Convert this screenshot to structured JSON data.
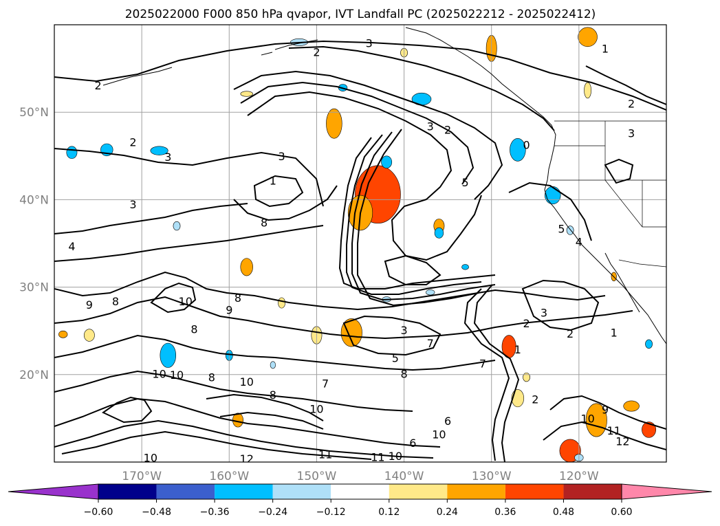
{
  "chart_data": {
    "type": "contour-map",
    "title": "2025022000 F000 850 hPa qvapor, IVT Landfall PC (2025022212 - 2025022412)",
    "lon_range": [
      -180,
      -110
    ],
    "lat_range": [
      10,
      60
    ],
    "lon_ticks": [
      -170,
      -160,
      -150,
      -140,
      -130,
      -120
    ],
    "lon_tick_labels": [
      "170°W",
      "160°W",
      "150°W",
      "140°W",
      "130°W",
      "120°W"
    ],
    "lat_ticks": [
      20,
      30,
      40,
      50
    ],
    "lat_tick_labels": [
      "20°N",
      "30°N",
      "40°N",
      "50°N"
    ],
    "grid": true,
    "contour_labels": [
      {
        "text": "3",
        "lon": -144,
        "lat": 57.9
      },
      {
        "text": "2",
        "lon": -150,
        "lat": 56.9
      },
      {
        "text": "1",
        "lon": -117,
        "lat": 57.3
      },
      {
        "text": "2",
        "lon": -175,
        "lat": 53.1
      },
      {
        "text": "2",
        "lon": -114,
        "lat": 51.0
      },
      {
        "text": "2",
        "lon": -171,
        "lat": 46.6
      },
      {
        "text": "3",
        "lon": -167,
        "lat": 44.9
      },
      {
        "text": "3",
        "lon": -154,
        "lat": 45.0
      },
      {
        "text": "3",
        "lon": -137,
        "lat": 48.4
      },
      {
        "text": "2",
        "lon": -135,
        "lat": 48.0
      },
      {
        "text": "0",
        "lon": -126,
        "lat": 46.3
      },
      {
        "text": "5",
        "lon": -133,
        "lat": 42.0
      },
      {
        "text": "3",
        "lon": -114,
        "lat": 47.6
      },
      {
        "text": "3",
        "lon": -171,
        "lat": 39.5
      },
      {
        "text": "1",
        "lon": -155,
        "lat": 42.2
      },
      {
        "text": "8",
        "lon": -156,
        "lat": 37.4
      },
      {
        "text": "4",
        "lon": -178,
        "lat": 34.7
      },
      {
        "text": "5",
        "lon": -122,
        "lat": 36.7
      },
      {
        "text": "4",
        "lon": -120,
        "lat": 35.2
      },
      {
        "text": "8",
        "lon": -159,
        "lat": 28.8
      },
      {
        "text": "9",
        "lon": -176,
        "lat": 28.0
      },
      {
        "text": "8",
        "lon": -173,
        "lat": 28.4
      },
      {
        "text": "10",
        "lon": -165,
        "lat": 28.4
      },
      {
        "text": "9",
        "lon": -160,
        "lat": 27.4
      },
      {
        "text": "8",
        "lon": -164,
        "lat": 25.2
      },
      {
        "text": "3",
        "lon": -140,
        "lat": 25.1
      },
      {
        "text": "2",
        "lon": -126,
        "lat": 25.9
      },
      {
        "text": "3",
        "lon": -124,
        "lat": 27.1
      },
      {
        "text": "2",
        "lon": -121,
        "lat": 24.7
      },
      {
        "text": "1",
        "lon": -116,
        "lat": 24.8
      },
      {
        "text": "7",
        "lon": -137,
        "lat": 23.6
      },
      {
        "text": "5",
        "lon": -141,
        "lat": 21.9
      },
      {
        "text": "1",
        "lon": -127,
        "lat": 22.9
      },
      {
        "text": "7",
        "lon": -131,
        "lat": 21.3
      },
      {
        "text": "8",
        "lon": -140,
        "lat": 20.1
      },
      {
        "text": "10",
        "lon": -168,
        "lat": 20.1
      },
      {
        "text": "10",
        "lon": -166,
        "lat": 20.0
      },
      {
        "text": "8",
        "lon": -162,
        "lat": 19.7
      },
      {
        "text": "10",
        "lon": -158,
        "lat": 19.2
      },
      {
        "text": "7",
        "lon": -149,
        "lat": 19.0
      },
      {
        "text": "10",
        "lon": -150,
        "lat": 16.1
      },
      {
        "text": "8",
        "lon": -155,
        "lat": 17.7
      },
      {
        "text": "2",
        "lon": -125,
        "lat": 17.2
      },
      {
        "text": "9",
        "lon": -117,
        "lat": 16.0
      },
      {
        "text": "10",
        "lon": -119,
        "lat": 15.0
      },
      {
        "text": "11",
        "lon": -116,
        "lat": 13.6
      },
      {
        "text": "12",
        "lon": -115,
        "lat": 12.4
      },
      {
        "text": "6",
        "lon": -135,
        "lat": 14.7
      },
      {
        "text": "10",
        "lon": -136,
        "lat": 13.2
      },
      {
        "text": "6",
        "lon": -139,
        "lat": 12.2
      },
      {
        "text": "10",
        "lon": -141,
        "lat": 10.7
      },
      {
        "text": "11",
        "lon": -143,
        "lat": 10.6
      },
      {
        "text": "11",
        "lon": -149,
        "lat": 10.9
      },
      {
        "text": "12",
        "lon": -158,
        "lat": 10.4
      },
      {
        "text": "10",
        "lon": -169,
        "lat": 10.5
      }
    ],
    "shaded_patches": [
      {
        "lon": -143,
        "lat": 40.6,
        "rlon": 2.6,
        "rlat": 3.3,
        "value": 0.4
      },
      {
        "lon": -145,
        "lat": 38.5,
        "rlon": 1.4,
        "rlat": 2.0,
        "value": 0.34
      },
      {
        "lon": -148,
        "lat": 48.7,
        "rlon": 0.9,
        "rlat": 1.7,
        "value": 0.28
      },
      {
        "lon": -158,
        "lat": 52.1,
        "rlon": 0.7,
        "rlat": 0.3,
        "value": 0.22
      },
      {
        "lon": -119,
        "lat": 58.6,
        "rlon": 1.1,
        "rlat": 1.1,
        "value": 0.33
      },
      {
        "lon": -130,
        "lat": 57.3,
        "rlon": 0.6,
        "rlat": 1.5,
        "value": 0.25
      },
      {
        "lon": -119,
        "lat": 52.5,
        "rlon": 0.4,
        "rlat": 0.9,
        "value": 0.2
      },
      {
        "lon": -136,
        "lat": 37.0,
        "rlon": 0.6,
        "rlat": 0.8,
        "value": 0.25
      },
      {
        "lon": -158,
        "lat": 32.3,
        "rlon": 0.7,
        "rlat": 1.0,
        "value": 0.25
      },
      {
        "lon": -146,
        "lat": 24.8,
        "rlon": 1.2,
        "rlat": 1.6,
        "value": 0.28
      },
      {
        "lon": -150,
        "lat": 24.5,
        "rlon": 0.6,
        "rlat": 1.0,
        "value": 0.2
      },
      {
        "lon": -154,
        "lat": 28.2,
        "rlon": 0.4,
        "rlat": 0.6,
        "value": 0.2
      },
      {
        "lon": -128,
        "lat": 23.2,
        "rlon": 0.8,
        "rlat": 1.3,
        "value": 0.36
      },
      {
        "lon": -126,
        "lat": 19.7,
        "rlon": 0.4,
        "rlat": 0.5,
        "value": 0.2
      },
      {
        "lon": -127,
        "lat": 17.3,
        "rlon": 0.7,
        "rlat": 1.0,
        "value": 0.23
      },
      {
        "lon": -118,
        "lat": 14.8,
        "rlon": 1.2,
        "rlat": 1.9,
        "value": 0.35
      },
      {
        "lon": -114,
        "lat": 16.4,
        "rlon": 0.9,
        "rlat": 0.6,
        "value": 0.32
      },
      {
        "lon": -112,
        "lat": 13.7,
        "rlon": 0.8,
        "rlat": 0.9,
        "value": 0.4
      },
      {
        "lon": -121,
        "lat": 11.3,
        "rlon": 1.2,
        "rlat": 1.3,
        "value": 0.42
      },
      {
        "lon": -159,
        "lat": 14.8,
        "rlon": 0.6,
        "rlat": 0.8,
        "value": 0.3
      },
      {
        "lon": -179,
        "lat": 24.6,
        "rlon": 0.5,
        "rlat": 0.4,
        "value": 0.28
      },
      {
        "lon": -176,
        "lat": 24.5,
        "rlon": 0.6,
        "rlat": 0.7,
        "value": 0.23
      },
      {
        "lon": -116,
        "lat": 31.2,
        "rlon": 0.3,
        "rlat": 0.5,
        "value": 0.24
      },
      {
        "lon": -140,
        "lat": 56.8,
        "rlon": 0.4,
        "rlat": 0.5,
        "value": 0.2
      },
      {
        "lon": -147,
        "lat": 52.8,
        "rlon": 0.5,
        "rlat": 0.4,
        "value": -0.25
      },
      {
        "lon": -152,
        "lat": 58.0,
        "rlon": 1.0,
        "rlat": 0.4,
        "value": -0.22
      },
      {
        "lon": -138,
        "lat": 51.5,
        "rlon": 1.1,
        "rlat": 0.7,
        "value": -0.33
      },
      {
        "lon": -127,
        "lat": 45.7,
        "rlon": 0.9,
        "rlat": 1.3,
        "value": -0.35
      },
      {
        "lon": -123,
        "lat": 40.5,
        "rlon": 0.9,
        "rlat": 1.0,
        "value": -0.32
      },
      {
        "lon": -168,
        "lat": 45.6,
        "rlon": 1.0,
        "rlat": 0.5,
        "value": -0.28
      },
      {
        "lon": -174,
        "lat": 45.7,
        "rlon": 0.7,
        "rlat": 0.7,
        "value": -0.3
      },
      {
        "lon": -178,
        "lat": 45.4,
        "rlon": 0.6,
        "rlat": 0.7,
        "value": -0.33
      },
      {
        "lon": -142,
        "lat": 44.3,
        "rlon": 0.6,
        "rlat": 0.7,
        "value": -0.28
      },
      {
        "lon": -136,
        "lat": 36.2,
        "rlon": 0.5,
        "rlat": 0.6,
        "value": -0.25
      },
      {
        "lon": -133,
        "lat": 32.3,
        "rlon": 0.4,
        "rlat": 0.3,
        "value": -0.25
      },
      {
        "lon": -137,
        "lat": 29.4,
        "rlon": 0.5,
        "rlat": 0.3,
        "value": -0.22
      },
      {
        "lon": -142,
        "lat": 28.6,
        "rlon": 0.5,
        "rlat": 0.3,
        "value": -0.22
      },
      {
        "lon": -167,
        "lat": 22.2,
        "rlon": 0.9,
        "rlat": 1.4,
        "value": -0.35
      },
      {
        "lon": -160,
        "lat": 22.2,
        "rlon": 0.4,
        "rlat": 0.6,
        "value": -0.28
      },
      {
        "lon": -120,
        "lat": 10.5,
        "rlon": 0.5,
        "rlat": 0.4,
        "value": -0.24
      },
      {
        "lon": -112,
        "lat": 23.5,
        "rlon": 0.4,
        "rlat": 0.5,
        "value": -0.26
      },
      {
        "lon": -121,
        "lat": 36.5,
        "rlon": 0.4,
        "rlat": 0.5,
        "value": -0.24
      },
      {
        "lon": -155,
        "lat": 21.1,
        "rlon": 0.3,
        "rlat": 0.4,
        "value": -0.2
      },
      {
        "lon": -166,
        "lat": 37.0,
        "rlon": 0.4,
        "rlat": 0.5,
        "value": -0.2
      }
    ],
    "colorbar": {
      "boundaries": [
        -0.6,
        -0.48,
        -0.36,
        -0.24,
        -0.12,
        0.12,
        0.24,
        0.36,
        0.48,
        0.6
      ],
      "tick_labels": [
        "−0.60",
        "−0.48",
        "−0.36",
        "−0.24",
        "−0.12",
        "0.12",
        "0.24",
        "0.36",
        "0.48",
        "0.60"
      ],
      "colors": [
        "#9932cc",
        "#00008b",
        "#3b5fcd",
        "#00bfff",
        "#afe0f8",
        "#ffffff",
        "#ffe989",
        "#ffa500",
        "#ff4500",
        "#b22222",
        "#ff87aa"
      ],
      "extend": "both"
    }
  }
}
